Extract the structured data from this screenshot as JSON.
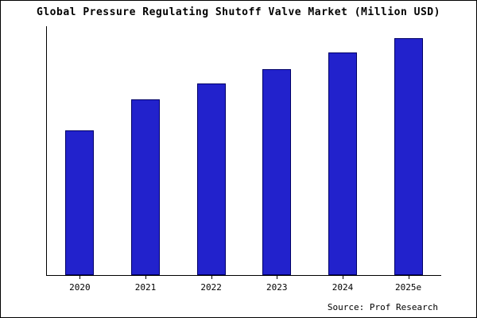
{
  "title": "Global Pressure Regulating Shutoff Valve Market (Million USD)",
  "source": "Source: Prof Research",
  "colors": {
    "bar_fill": "#2222cc",
    "bar_border": "#000066",
    "axis": "#000000",
    "background": "#ffffff"
  },
  "chart_data": {
    "type": "bar",
    "categories": [
      "2020",
      "2021",
      "2022",
      "2023",
      "2024",
      "2025e"
    ],
    "values": [
      61,
      74,
      81,
      87,
      94,
      100
    ],
    "title": "Global Pressure Regulating Shutoff Valve Market (Million USD)",
    "xlabel": "",
    "ylabel": "",
    "ylim": [
      0,
      105
    ],
    "grid": false,
    "legend": false
  }
}
